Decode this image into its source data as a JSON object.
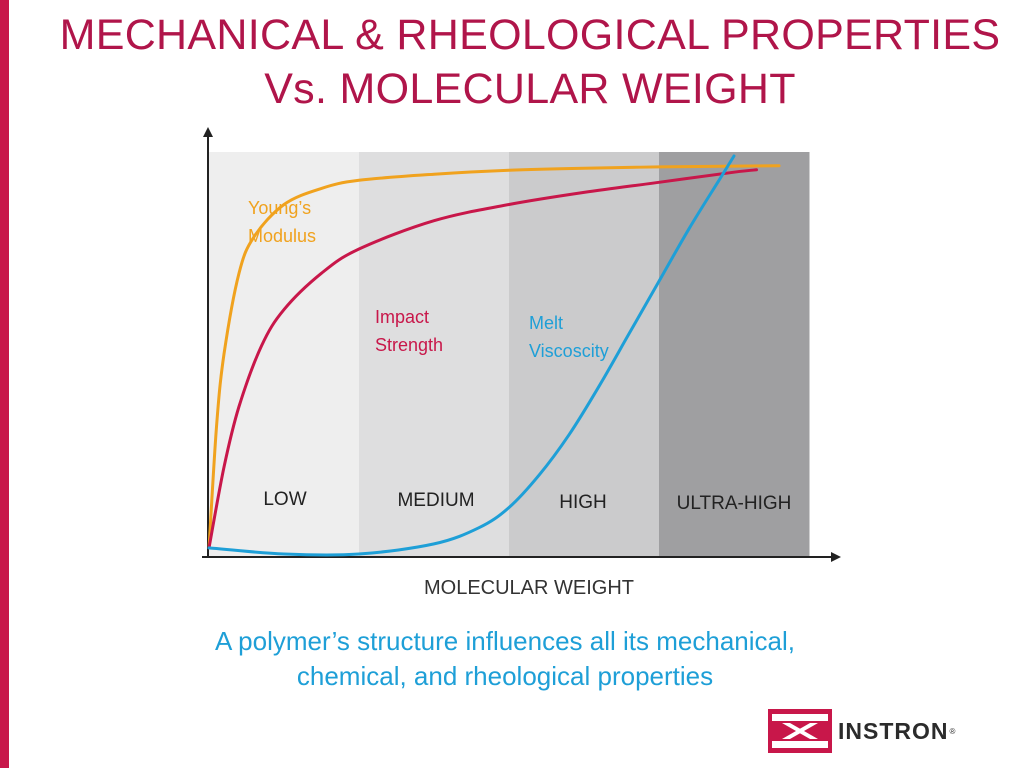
{
  "title": {
    "line1": "MECHANICAL & RHEOLOGICAL PROPERTIES",
    "line2": "Vs. MOLECULAR WEIGHT"
  },
  "chart_data": {
    "type": "line",
    "title": "",
    "xlabel": "MOLECULAR WEIGHT",
    "ylabel": "",
    "regions": [
      {
        "label": "LOW",
        "color": "#eeeeee"
      },
      {
        "label": "MEDIUM",
        "color": "#dededf"
      },
      {
        "label": "HIGH",
        "color": "#cbcbcc"
      },
      {
        "label": "ULTRA-HIGH",
        "color": "#9f9fa1"
      }
    ],
    "grid": false,
    "legend": "inline labels",
    "series": [
      {
        "name": "Young’s Modulus",
        "label_lines": [
          "Young’s",
          "Modulus"
        ],
        "color": "#f0a21e",
        "x": [
          0,
          0.05,
          0.1,
          0.2,
          0.3,
          0.5,
          0.75,
          1.0,
          1.5,
          2.0,
          2.5,
          3.0,
          3.5,
          3.8
        ],
        "y": [
          0.02,
          0.32,
          0.5,
          0.7,
          0.79,
          0.87,
          0.91,
          0.93,
          0.945,
          0.955,
          0.96,
          0.963,
          0.965,
          0.966
        ]
      },
      {
        "name": "Impact Strength",
        "label_lines": [
          "Impact",
          "Strength"
        ],
        "color": "#c8174a",
        "x": [
          0,
          0.1,
          0.2,
          0.35,
          0.5,
          0.75,
          1.0,
          1.5,
          2.0,
          2.5,
          3.0,
          3.5,
          3.65
        ],
        "y": [
          0.02,
          0.22,
          0.37,
          0.52,
          0.61,
          0.7,
          0.76,
          0.83,
          0.87,
          0.9,
          0.925,
          0.95,
          0.956
        ]
      },
      {
        "name": "Melt Viscoscity",
        "label_lines": [
          "Melt",
          "Viscoscity"
        ],
        "color": "#1e9fd7",
        "x": [
          0,
          0.5,
          1.0,
          1.5,
          1.8,
          2.0,
          2.2,
          2.4,
          2.6,
          2.8,
          3.0,
          3.2,
          3.4,
          3.5
        ],
        "y": [
          0.02,
          0.005,
          0.005,
          0.03,
          0.07,
          0.12,
          0.2,
          0.3,
          0.42,
          0.55,
          0.68,
          0.81,
          0.93,
          0.99
        ]
      }
    ]
  },
  "caption": {
    "line1": "A polymer’s structure influences all its mechanical,",
    "line2": "chemical, and rheological properties"
  },
  "logo": {
    "text": "INSTRON",
    "reg": "®",
    "colors": {
      "red": "#c8174a",
      "dark": "#2b2b2b"
    }
  }
}
